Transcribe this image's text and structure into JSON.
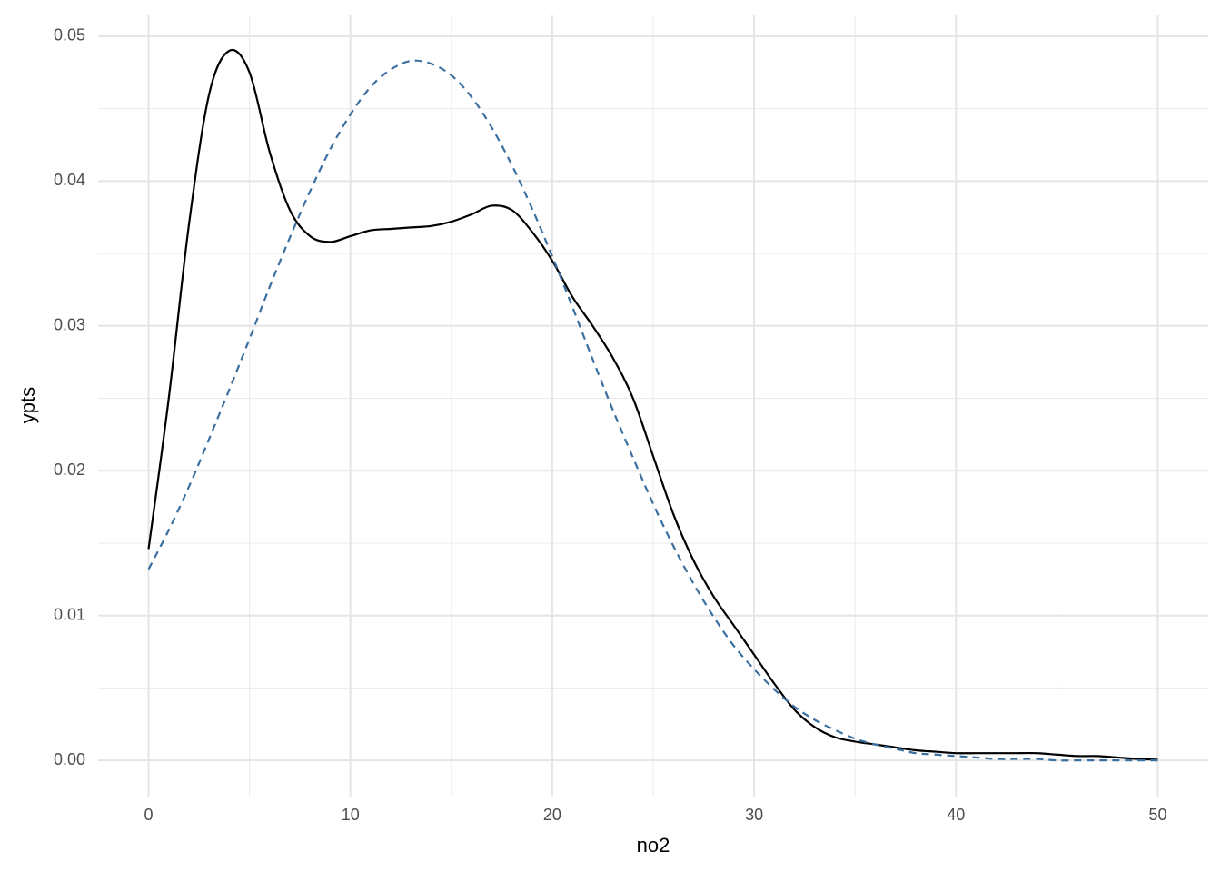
{
  "chart_data": {
    "type": "line",
    "x_label": "no2",
    "y_label": "ypts",
    "x": [
      0,
      1,
      2,
      3,
      4,
      5,
      6,
      7,
      8,
      9,
      10,
      11,
      12,
      13,
      14,
      15,
      16,
      17,
      18,
      19,
      20,
      21,
      22,
      23,
      24,
      25,
      26,
      27,
      28,
      29,
      30,
      31,
      32,
      33,
      34,
      35,
      36,
      37,
      38,
      39,
      40,
      41,
      42,
      43,
      44,
      45,
      46,
      47,
      48,
      49,
      50
    ],
    "series": [
      {
        "color": "#000000",
        "dash": "solid",
        "values": [
          0.0146,
          0.025,
          0.037,
          0.046,
          0.049,
          0.0475,
          0.042,
          0.038,
          0.0362,
          0.0358,
          0.0362,
          0.0366,
          0.0367,
          0.0368,
          0.0369,
          0.0372,
          0.0377,
          0.0383,
          0.038,
          0.0365,
          0.0345,
          0.032,
          0.03,
          0.0278,
          0.025,
          0.021,
          0.017,
          0.0138,
          0.0113,
          0.0093,
          0.0073,
          0.0053,
          0.0035,
          0.0023,
          0.0016,
          0.0013,
          0.0011,
          0.0009,
          0.0007,
          0.0006,
          0.0005,
          0.0005,
          0.0005,
          0.0005,
          0.0005,
          0.0004,
          0.0003,
          0.0003,
          0.0002,
          0.0001,
          5e-05
        ]
      },
      {
        "color": "#3b6fa0",
        "dash": "dashed",
        "values": [
          0.0132,
          0.0159,
          0.0189,
          0.0222,
          0.0256,
          0.0291,
          0.0327,
          0.0361,
          0.0393,
          0.0422,
          0.0446,
          0.0465,
          0.0477,
          0.0483,
          0.0481,
          0.0473,
          0.0458,
          0.0437,
          0.0411,
          0.0381,
          0.0348,
          0.0313,
          0.0277,
          0.0242,
          0.0209,
          0.0177,
          0.0148,
          0.0122,
          0.0099,
          0.0079,
          0.0063,
          0.0049,
          0.0037,
          0.0028,
          0.0021,
          0.0015,
          0.0011,
          0.0008,
          0.0005,
          0.0004,
          0.0003,
          0.0002,
          0.0001,
          0.0001,
          0.0001,
          0,
          0,
          0,
          0,
          0,
          0
        ]
      }
    ],
    "xlim": [
      -2.5,
      52.5
    ],
    "ylim": [
      -0.0025,
      0.0515
    ],
    "xticks": [
      0,
      10,
      20,
      30,
      40,
      50
    ],
    "yticks": [
      {
        "value": 0,
        "label": "0.00"
      },
      0.01,
      0.02,
      0.03,
      0.04,
      0.05
    ],
    "x_minor_ticks": [
      5,
      15,
      25,
      35,
      45
    ],
    "y_minor_ticks": [
      0.005,
      0.015,
      0.025,
      0.035,
      0.045
    ],
    "grid": true
  }
}
